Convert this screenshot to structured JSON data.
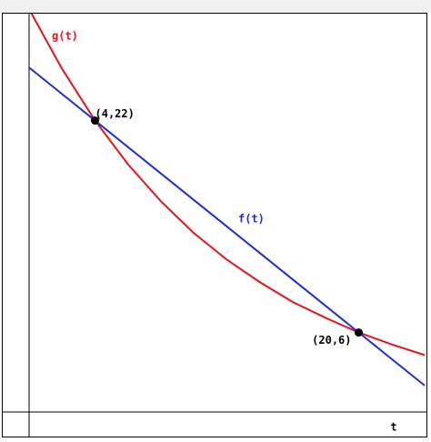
{
  "chart_data": {
    "type": "line",
    "x_label": "t",
    "x": [
      0,
      2,
      4,
      6,
      8,
      10,
      12,
      14,
      16,
      18,
      20,
      22,
      24
    ],
    "series": [
      {
        "name": "g(t)",
        "color": "#e8141b",
        "values": [
          30.4,
          25.9,
          22,
          18.7,
          15.9,
          13.5,
          11.5,
          9.8,
          8.3,
          7.1,
          6,
          5.1,
          4.3
        ]
      },
      {
        "name": "f(t)",
        "color": "#1f2fd6",
        "values": [
          26,
          24,
          22,
          20,
          18,
          16,
          14,
          12,
          10,
          8,
          6,
          4,
          2
        ]
      }
    ],
    "points": [
      {
        "x": 4,
        "y": 22,
        "label": "(4,22)"
      },
      {
        "x": 20,
        "y": 6,
        "label": "(20,6)"
      }
    ],
    "xlim": [
      0,
      24
    ],
    "ylim": [
      0,
      30
    ]
  }
}
